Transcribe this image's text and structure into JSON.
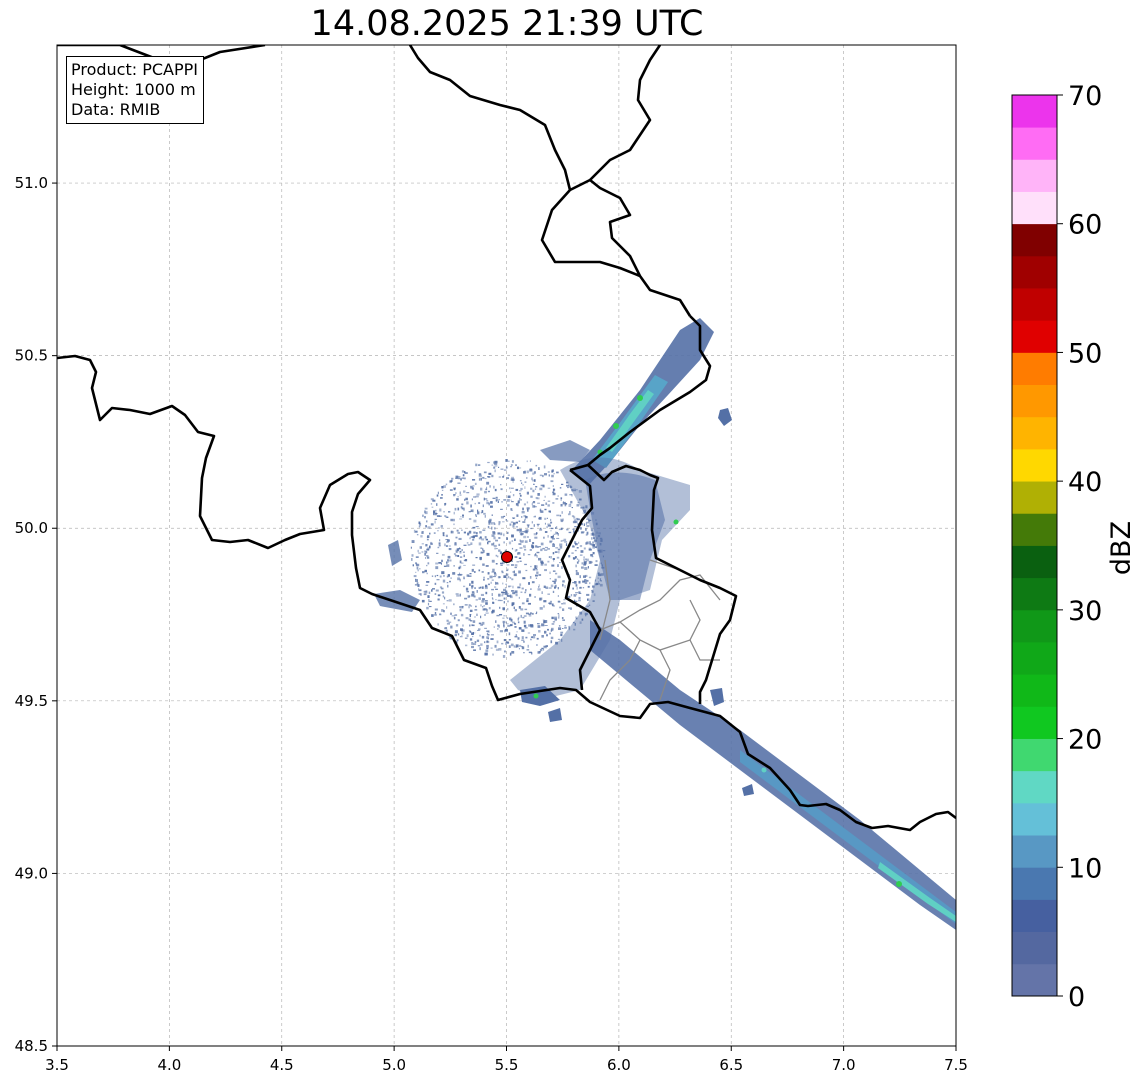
{
  "title": "14.08.2025 21:39 UTC",
  "info": {
    "product": "Product: PCAPPI",
    "height": "Height: 1000 m",
    "data": "Data: RMIB"
  },
  "map": {
    "x_ticks": [
      "3.5",
      "4.0",
      "4.5",
      "5.0",
      "5.5",
      "6.0",
      "6.5",
      "7.0",
      "7.5"
    ],
    "y_ticks": [
      "48.5",
      "49.0",
      "49.5",
      "50.0",
      "50.5",
      "51.0"
    ],
    "lon_range": [
      3.5,
      7.5
    ],
    "lat_range": [
      48.5,
      51.4
    ],
    "radar_site": {
      "lon": 5.5,
      "lat": 49.92,
      "color": "#e00000"
    },
    "grid": true
  },
  "colorbar": {
    "label": "dBZ",
    "ticks": [
      "0",
      "10",
      "20",
      "30",
      "40",
      "50",
      "60",
      "70"
    ],
    "range": [
      0,
      70
    ],
    "step": 2.5,
    "colors": [
      "#6474a8",
      "#5468a0",
      "#4660a0",
      "#4a78b0",
      "#5898c4",
      "#64c0d8",
      "#60d8c4",
      "#40d870",
      "#10c820",
      "#10b818",
      "#10a818",
      "#109818",
      "#0e7a14",
      "#0a6010",
      "#447a08",
      "#b0b004",
      "#ffd800",
      "#ffb400",
      "#ff9800",
      "#ff7c00",
      "#e00000",
      "#c00000",
      "#a00000",
      "#800000",
      "#ffe0fa",
      "#ffb4f8",
      "#ff6cf4",
      "#ec34ec"
    ]
  }
}
